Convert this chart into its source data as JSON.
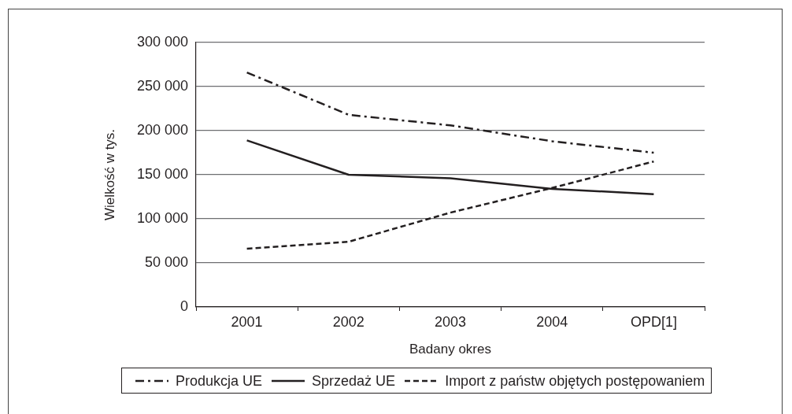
{
  "chart_data": {
    "type": "line",
    "xlabel": "Badany okres",
    "ylabel": "Wielkość w tys.",
    "categories": [
      "2001",
      "2002",
      "2003",
      "2004",
      "OPD[1]"
    ],
    "ylim": [
      0,
      300000
    ],
    "yticks": [
      0,
      {
        "value": 50000,
        "label": "50 000"
      },
      {
        "value": 100000,
        "label": "100 000"
      },
      {
        "value": 150000,
        "label": "150 000"
      },
      {
        "value": 200000,
        "label": "200 000"
      },
      {
        "value": 250000,
        "label": "250 000"
      },
      {
        "value": 300000,
        "label": "300 000"
      }
    ],
    "grid": "y",
    "legend": "bottom",
    "marker": "none",
    "series": [
      {
        "name": "Produkcja UE",
        "color": "#231f20",
        "line_style": "dashdot",
        "values": [
          266000,
          218000,
          206000,
          188000,
          175000
        ]
      },
      {
        "name": "Sprzedaż UE",
        "color": "#231f20",
        "line_style": "solid",
        "values": [
          189000,
          150000,
          146000,
          134000,
          128000
        ]
      },
      {
        "name": "Import z państw objętych postępowaniem",
        "color": "#231f20",
        "line_style": "dashed",
        "values": [
          66000,
          74000,
          107000,
          135000,
          165000
        ]
      }
    ]
  }
}
